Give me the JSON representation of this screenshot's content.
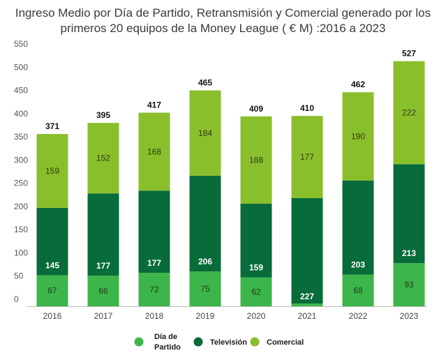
{
  "chart_data": {
    "type": "bar",
    "stacked": true,
    "title_lines": [
      "Ingreso Medio por Día de Partido, Retransmisión y Comercial generado por los",
      "primeros 20 equipos de la Money League ( € M) :2016 a 2023"
    ],
    "categories": [
      "2016",
      "2017",
      "2018",
      "2019",
      "2020",
      "2021",
      "2022",
      "2023"
    ],
    "series": [
      {
        "name": "Día de Partido",
        "legend_lines": [
          "Día de",
          "Partido"
        ],
        "color": "#3cb54a",
        "label_color": "#1e3d1e",
        "values": [
          67,
          66,
          72,
          75,
          62,
          6,
          68,
          93
        ],
        "labels": [
          "67",
          "66",
          "72",
          "75",
          "62",
          "",
          "68",
          "93"
        ]
      },
      {
        "name": "Televisión",
        "legend_lines": [
          "Televisión"
        ],
        "color": "#086b3a",
        "label_color": "#ffffff",
        "values": [
          145,
          177,
          177,
          206,
          159,
          227,
          203,
          213
        ],
        "labels": [
          "145",
          "177",
          "177",
          "206",
          "159",
          "227",
          "203",
          "213"
        ]
      },
      {
        "name": "Comercial",
        "legend_lines": [
          "Comercial"
        ],
        "color": "#8abf2c",
        "label_color": "#2e3a12",
        "values": [
          159,
          152,
          168,
          184,
          188,
          177,
          190,
          222
        ],
        "labels": [
          "159",
          "152",
          "168",
          "184",
          "188",
          "177",
          "190",
          "222"
        ]
      }
    ],
    "totals": [
      "371",
      "395",
      "417",
      "465",
      "409",
      "410",
      "462",
      "527"
    ],
    "yticks": [
      "0",
      "50",
      "100",
      "150",
      "200",
      "250",
      "300",
      "350",
      "400",
      "450",
      "500",
      "550"
    ],
    "ylim": [
      0,
      550
    ],
    "grid": false,
    "legend_position": "bottom"
  }
}
